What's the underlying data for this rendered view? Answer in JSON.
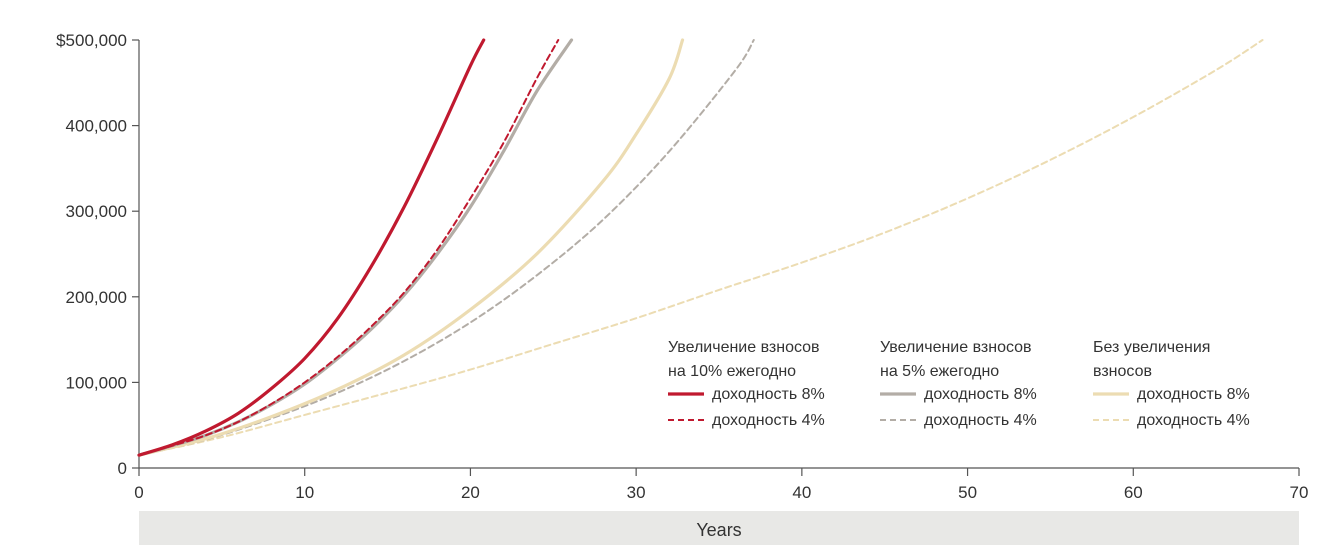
{
  "chart_data": {
    "type": "line",
    "xlabel": "Years",
    "ylabel": "",
    "xlim": [
      0,
      70
    ],
    "ylim": [
      0,
      500000
    ],
    "x_ticks": [
      0,
      10,
      20,
      30,
      40,
      50,
      60,
      70
    ],
    "x_tick_labels": [
      "0",
      "10",
      "20",
      "30",
      "40",
      "50",
      "60",
      "70"
    ],
    "y_ticks": [
      0,
      100000,
      200000,
      300000,
      400000,
      500000
    ],
    "y_tick_labels": [
      "0",
      "100,000",
      "200,000",
      "300,000",
      "400,000",
      "$500,000"
    ],
    "grid": false,
    "legend_position": "lower-right",
    "legend_groups": [
      {
        "title_lines": [
          "Увеличение взносов",
          "на 10% ежегодно"
        ]
      },
      {
        "title_lines": [
          "Увеличение взносов",
          "на 5% ежегодно"
        ]
      },
      {
        "title_lines": [
          "Без увеличения",
          "взносов"
        ]
      }
    ],
    "series": [
      {
        "name": "доходность 8%",
        "group": 0,
        "color": "#c0192f",
        "dash": "solid",
        "x": [
          0,
          2,
          4,
          6,
          8,
          10,
          12,
          14,
          16,
          18,
          20,
          20.8
        ],
        "y": [
          15000,
          27000,
          43000,
          64000,
          93000,
          128000,
          175000,
          235000,
          305000,
          385000,
          470000,
          500000
        ]
      },
      {
        "name": "доходность 4%",
        "group": 0,
        "color": "#c0192f",
        "dash": "dashed",
        "x": [
          0,
          2,
          4,
          6,
          8,
          10,
          12,
          14,
          16,
          18,
          20,
          22,
          24,
          25.3
        ],
        "y": [
          15000,
          26000,
          38000,
          54000,
          75000,
          100000,
          130000,
          165000,
          205000,
          255000,
          315000,
          380000,
          455000,
          500000
        ]
      },
      {
        "name": "доходность 8%",
        "group": 1,
        "color": "#b3ada6",
        "dash": "solid",
        "x": [
          0,
          2,
          4,
          6,
          8,
          10,
          12,
          14,
          16,
          18,
          20,
          22,
          24,
          26.1
        ],
        "y": [
          15000,
          26000,
          38000,
          54000,
          74000,
          98000,
          128000,
          162000,
          202000,
          250000,
          305000,
          370000,
          440000,
          500000
        ]
      },
      {
        "name": "доходность 4%",
        "group": 1,
        "color": "#b3ada6",
        "dash": "dashed",
        "x": [
          0,
          4,
          8,
          12,
          16,
          20,
          24,
          28,
          32,
          36,
          37.1
        ],
        "y": [
          15000,
          33000,
          58000,
          88000,
          125000,
          170000,
          225000,
          290000,
          370000,
          465000,
          500000
        ]
      },
      {
        "name": "доходность 8%",
        "group": 2,
        "color": "#ecdcb2",
        "dash": "solid",
        "x": [
          0,
          4,
          8,
          12,
          16,
          20,
          24,
          28,
          30,
          32,
          32.8
        ],
        "y": [
          15000,
          34000,
          60000,
          92000,
          132000,
          185000,
          250000,
          335000,
          390000,
          455000,
          500000
        ]
      },
      {
        "name": "доходность 4%",
        "group": 2,
        "color": "#ecdcb2",
        "dash": "dashed",
        "x": [
          0,
          5,
          10,
          15,
          20,
          25,
          30,
          35,
          40,
          45,
          50,
          55,
          60,
          65,
          67.8
        ],
        "y": [
          15000,
          36000,
          62000,
          88000,
          115000,
          145000,
          175000,
          208000,
          240000,
          275000,
          315000,
          360000,
          410000,
          465000,
          500000
        ]
      }
    ]
  }
}
